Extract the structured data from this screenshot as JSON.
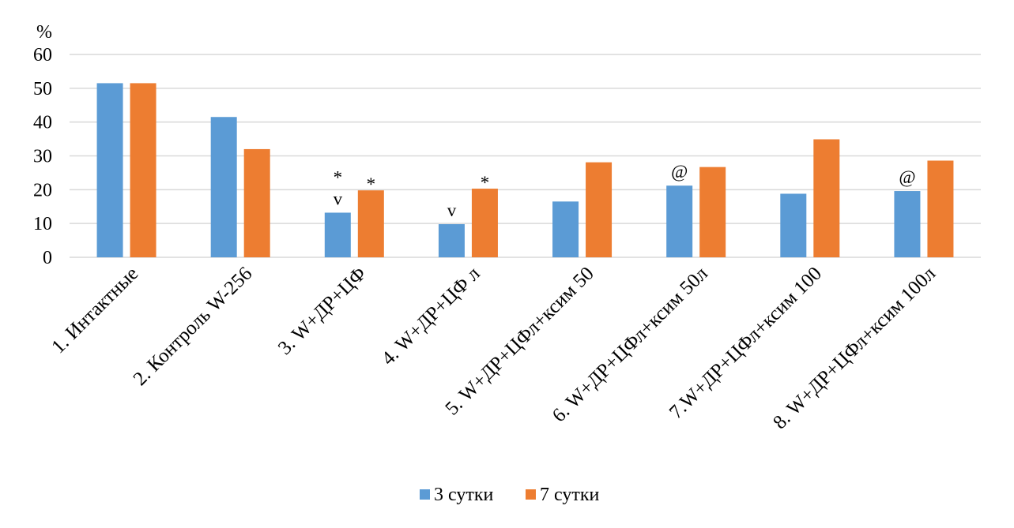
{
  "chart_data": {
    "type": "bar",
    "ylabel": "%",
    "ylim": [
      0,
      60
    ],
    "yticks": [
      0,
      10,
      20,
      30,
      40,
      50,
      60
    ],
    "grid": true,
    "legend_position": "bottom",
    "categories": [
      "1. Интактные",
      "2. Контроль W-256",
      "3. W+ДР+ЦФ",
      "4. W+ДР+ЦФ л",
      "5. W+ДР+ЦФл+ксим 50",
      "6. W+ДР+ЦФл+ксим 50л",
      "7.W+ДР+ЦФл+ксим 100",
      "8. W+ДР+ЦФл+ксим 100л"
    ],
    "series": [
      {
        "name": "3 сутки",
        "color": "#5b9bd5",
        "values": [
          51.5,
          41.5,
          13.2,
          9.8,
          16.5,
          21.2,
          18.8,
          19.6
        ]
      },
      {
        "name": "7 сутки",
        "color": "#ed7d31",
        "values": [
          51.5,
          32.0,
          19.8,
          20.3,
          28.1,
          26.7,
          34.9,
          28.6
        ]
      }
    ],
    "annotations": [
      {
        "category": 2,
        "series": 0,
        "lines": [
          "*",
          "v"
        ]
      },
      {
        "category": 2,
        "series": 1,
        "lines": [
          "*"
        ]
      },
      {
        "category": 3,
        "series": 0,
        "lines": [
          "v"
        ]
      },
      {
        "category": 3,
        "series": 1,
        "lines": [
          "*"
        ]
      },
      {
        "category": 5,
        "series": 0,
        "lines": [
          "@"
        ]
      },
      {
        "category": 7,
        "series": 0,
        "lines": [
          "@"
        ]
      }
    ]
  }
}
